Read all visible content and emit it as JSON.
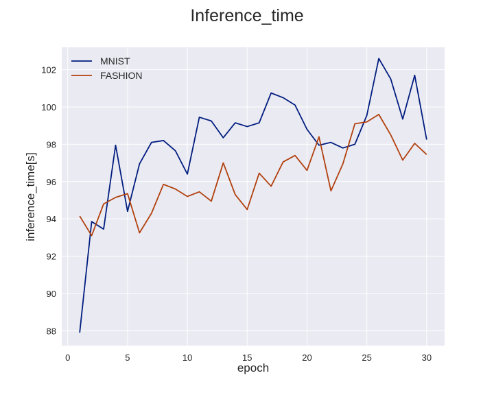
{
  "chart_data": {
    "type": "line",
    "title": "Inference_time",
    "xlabel": "epoch",
    "ylabel": "inference_time[s]",
    "xlim": [
      -0.5,
      31.5
    ],
    "ylim": [
      87.2,
      103.2
    ],
    "xticks": [
      0,
      5,
      10,
      15,
      20,
      25,
      30
    ],
    "yticks": [
      88,
      90,
      92,
      94,
      96,
      98,
      100,
      102
    ],
    "grid": true,
    "legend_position": "top-left",
    "x": [
      1,
      2,
      3,
      4,
      5,
      6,
      7,
      8,
      9,
      10,
      11,
      12,
      13,
      14,
      15,
      16,
      17,
      18,
      19,
      20,
      21,
      22,
      23,
      24,
      25,
      26,
      27,
      28,
      29,
      30
    ],
    "series": [
      {
        "name": "MNIST",
        "color": "#001c7f",
        "values": [
          87.9,
          93.85,
          93.45,
          97.95,
          94.4,
          96.95,
          98.1,
          98.2,
          97.65,
          96.4,
          99.45,
          99.25,
          98.35,
          99.15,
          98.95,
          99.15,
          100.75,
          100.5,
          100.1,
          98.8,
          97.95,
          98.1,
          97.8,
          98.0,
          99.55,
          102.6,
          101.5,
          99.35,
          101.7,
          98.25
        ]
      },
      {
        "name": "FASHION",
        "color": "#b1400d",
        "values": [
          94.15,
          93.1,
          94.8,
          95.15,
          95.35,
          93.25,
          94.3,
          95.85,
          95.6,
          95.2,
          95.45,
          94.95,
          97.0,
          95.3,
          94.5,
          96.45,
          95.75,
          97.05,
          97.4,
          96.6,
          98.4,
          95.5,
          96.95,
          99.1,
          99.2,
          99.6,
          98.5,
          97.15,
          98.05,
          97.45
        ]
      }
    ]
  }
}
